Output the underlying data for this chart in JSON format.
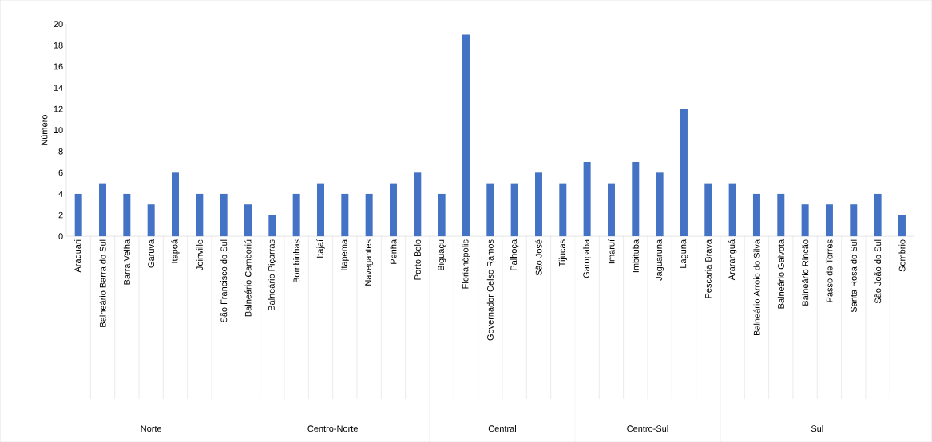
{
  "chart_data": {
    "type": "bar",
    "ylabel": "Número",
    "color": "#4472c4",
    "ylim": [
      0,
      20
    ],
    "yticks": [
      0,
      2,
      4,
      6,
      8,
      10,
      12,
      14,
      16,
      18,
      20
    ],
    "grid": false,
    "categories": [
      "Araquari",
      "Balneário Barra do Sul",
      "Barra Velha",
      "Garuva",
      "Itapoá",
      "Joinville",
      "São Francisco do Sul",
      "Balneário Camboriú",
      "Balneário Piçarras",
      "Bombinhas",
      "Itajaí",
      "Itapema",
      "Navegantes",
      "Penha",
      "Porto Belo",
      "Biguaçu",
      "Florianópolis",
      "Governador Celso Ramos",
      "Palhoça",
      "São José",
      "Tijucas",
      "Garopaba",
      "Imaruí",
      "Imbituba",
      "Jaguaruna",
      "Laguna",
      "Pescaria Brava",
      "Araranguá",
      "Balneário Arroio do Silva",
      "Balneário Gaivota",
      "Balneário Rincão",
      "Passo de Torres",
      "Santa Rosa do Sul",
      "São João do Sul",
      "Sombrio"
    ],
    "values": [
      4,
      5,
      4,
      3,
      6,
      4,
      4,
      3,
      2,
      4,
      5,
      4,
      4,
      5,
      6,
      4,
      19,
      5,
      5,
      6,
      5,
      7,
      5,
      7,
      6,
      12,
      5,
      5,
      4,
      4,
      3,
      3,
      3,
      4,
      2
    ],
    "annotations": [
      "Norte",
      "Centro-Norte",
      "Central",
      "Centro-Sul",
      "Sul"
    ]
  }
}
